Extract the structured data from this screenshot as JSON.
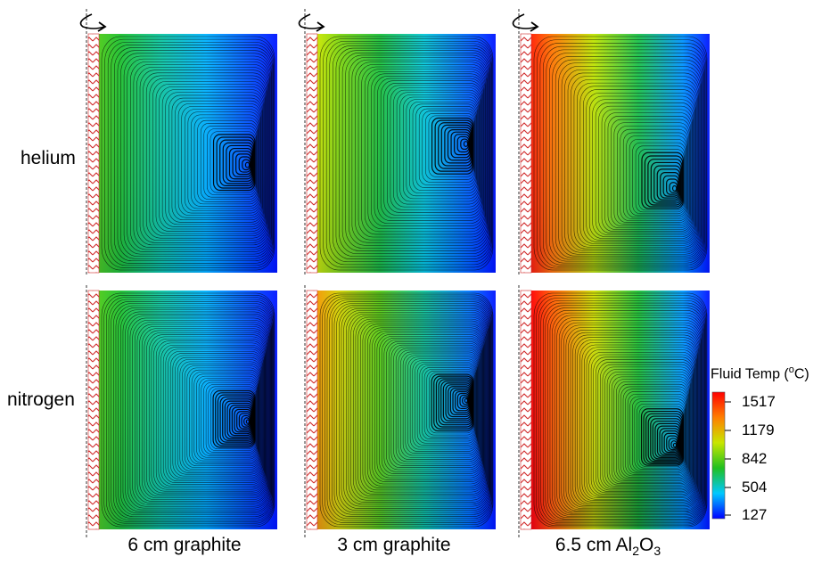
{
  "row_labels": [
    "helium",
    "nitrogen"
  ],
  "column_labels": [
    {
      "main": "6 cm graphite"
    },
    {
      "main": "3 cm graphite"
    },
    {
      "main": "6.5 cm Al",
      "sub1": "2",
      "mid": "O",
      "sub2": "3"
    }
  ],
  "legend": {
    "title_prefix": "Fluid Temp (",
    "title_sup": "o",
    "title_suffix": "C)",
    "ticks": [
      "1517",
      "1179",
      "842",
      "504",
      "127"
    ]
  },
  "colors": {
    "colormap": [
      "#0000ff",
      "#00c8ff",
      "#20c020",
      "#c8e600",
      "#ff7f00",
      "#ff0000"
    ],
    "wall_hatch": "#d02828",
    "streamline": "#000000"
  },
  "panels": [
    {
      "row": "helium",
      "column": "6 cm graphite",
      "hot_level": 0.45
    },
    {
      "row": "helium",
      "column": "3 cm graphite",
      "hot_level": 0.6
    },
    {
      "row": "helium",
      "column": "6.5 cm Al2O3",
      "hot_level": 0.95
    },
    {
      "row": "nitrogen",
      "column": "6 cm graphite",
      "hot_level": 0.45
    },
    {
      "row": "nitrogen",
      "column": "3 cm graphite",
      "hot_level": 0.75
    },
    {
      "row": "nitrogen",
      "column": "6.5 cm Al2O3",
      "hot_level": 1.0
    }
  ]
}
